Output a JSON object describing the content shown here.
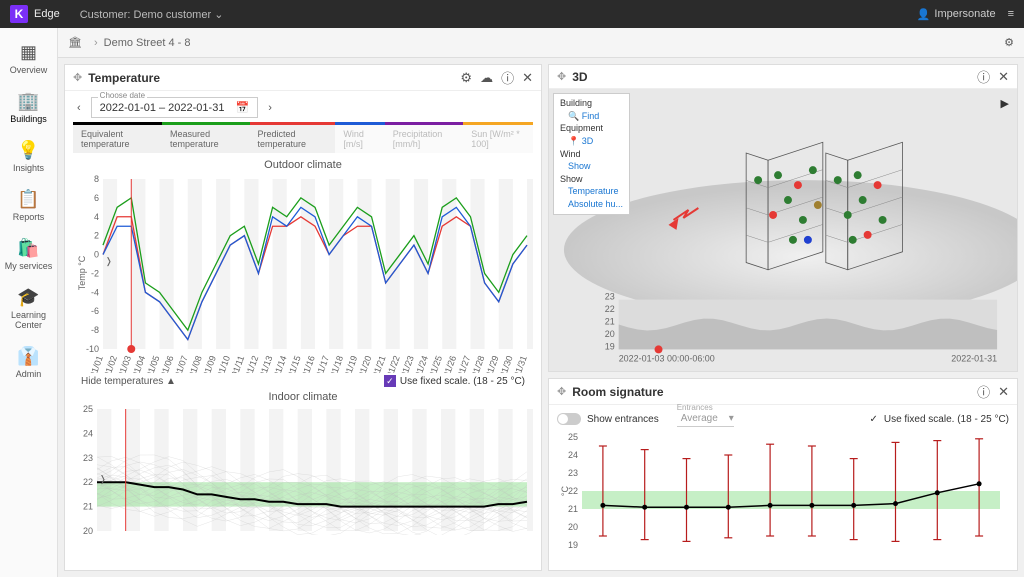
{
  "topbar": {
    "brand": "Edge",
    "customer_label": "Customer: Demo customer",
    "impersonate": "Impersonate"
  },
  "breadcrumb": {
    "location": "Demo Street 4 - 8"
  },
  "sidebar": {
    "items": [
      {
        "label": "Overview"
      },
      {
        "label": "Buildings"
      },
      {
        "label": "Insights"
      },
      {
        "label": "Reports"
      },
      {
        "label": "My services"
      },
      {
        "label": "Learning Center"
      },
      {
        "label": "Admin"
      }
    ]
  },
  "temp_panel": {
    "title": "Temperature",
    "date_label": "Choose date",
    "date_range": "2022-01-01 – 2022-01-31",
    "legend": [
      {
        "label": "Equivalent temperature",
        "color": "#000000"
      },
      {
        "label": "Measured temperature",
        "color": "#1b9e1b"
      },
      {
        "label": "Predicted temperature",
        "color": "#e53935"
      },
      {
        "label": "Wind [m/s]",
        "color": "#1e5bd6",
        "dim": true
      },
      {
        "label": "Precipitation [mm/h]",
        "color": "#7b1fa2",
        "dim": true
      },
      {
        "label": "Sun [W/m² * 100]",
        "color": "#f5a623",
        "dim": true
      }
    ],
    "outdoor_title": "Outdoor climate",
    "indoor_title": "Indoor climate",
    "hide_link": "Hide temperatures",
    "fixed_scale": "Use fixed scale. (18 - 25 °C)",
    "outdoor_chart": {
      "ylabel": "Temp °C",
      "ylim": [
        -10,
        8
      ],
      "ytick_step": 2,
      "x_labels": [
        "01/01",
        "01/02",
        "01/03",
        "01/04",
        "01/05",
        "01/06",
        "01/07",
        "01/08",
        "01/09",
        "01/10",
        "01/11",
        "01/12",
        "01/13",
        "01/14",
        "01/15",
        "01/16",
        "01/17",
        "01/18",
        "01/19",
        "01/20",
        "01/21",
        "01/22",
        "01/23",
        "01/24",
        "01/25",
        "01/26",
        "01/27",
        "01/28",
        "01/29",
        "01/30",
        "01/31"
      ],
      "cursor_index": 2,
      "series": {
        "green": {
          "color": "#1b9e1b",
          "values": [
            1,
            5,
            6,
            -3,
            -4,
            -6,
            -8,
            -4,
            -1,
            2,
            3,
            -1,
            5,
            4,
            6,
            5,
            1,
            3,
            5,
            4,
            -2,
            0,
            2,
            -1,
            5,
            6,
            4,
            -2,
            -4,
            0,
            2
          ]
        },
        "red": {
          "color": "#e53935",
          "values": [
            0,
            4,
            4,
            -4,
            -5,
            -7,
            -9,
            -5,
            -2,
            1,
            2,
            -2,
            3,
            3,
            4,
            3,
            0,
            2,
            3,
            3,
            -3,
            -1,
            1,
            -2,
            3,
            4,
            3,
            -3,
            -5,
            -1,
            1
          ]
        },
        "blue": {
          "color": "#1e5bd6",
          "values": [
            0,
            3,
            3,
            -4,
            -5,
            -7,
            -9,
            -5,
            -2,
            1,
            2,
            -2,
            4,
            3,
            5,
            4,
            0,
            2,
            4,
            3,
            -3,
            -1,
            1,
            -2,
            4,
            5,
            3,
            -3,
            -5,
            -1,
            1
          ]
        }
      }
    },
    "indoor_chart": {
      "ylabel": "°C",
      "ylim": [
        20,
        25
      ],
      "ytick_step": 1,
      "green_band": [
        21,
        22
      ],
      "main_line": {
        "color": "#000",
        "values": [
          22,
          22,
          22,
          21.9,
          21.8,
          21.8,
          21.7,
          21.5,
          21.5,
          21.4,
          21.3,
          21.3,
          21.2,
          21.2,
          21.1,
          21.1,
          21.1,
          21.0,
          21.0,
          21.0,
          21.0,
          21.0,
          21.0,
          21.0,
          21.0,
          21.0,
          21.0,
          21.0,
          21.1,
          21.1,
          21.2
        ]
      }
    }
  },
  "threed_panel": {
    "title": "3D",
    "controls": {
      "building": "Building",
      "find": "Find",
      "equipment": "Equipment",
      "threed": "3D",
      "wind": "Wind",
      "show": "Show",
      "show2": "Show",
      "temperature": "Temperature",
      "humidity": "Absolute hu..."
    },
    "timeline": {
      "start": "2022-01-03 00:00-06:00",
      "end": "2022-01-31",
      "ylabels": [
        "19",
        "20",
        "21",
        "22",
        "23"
      ]
    }
  },
  "room_panel": {
    "title": "Room signature",
    "show_entrances": "Show entrances",
    "entrances_label": "Entrances",
    "entrances_value": "Average",
    "fixed_scale": "Use fixed scale. (18 - 25 °C)",
    "chart": {
      "ylabel": "°C",
      "ylim": [
        19,
        25
      ],
      "ytick_step": 1,
      "green_band": [
        21,
        22
      ],
      "points": [
        {
          "y": 21.2,
          "lo": 19.5,
          "hi": 24.5
        },
        {
          "y": 21.1,
          "lo": 19.3,
          "hi": 24.3
        },
        {
          "y": 21.1,
          "lo": 19.2,
          "hi": 23.8
        },
        {
          "y": 21.1,
          "lo": 19.4,
          "hi": 24.0
        },
        {
          "y": 21.2,
          "lo": 19.5,
          "hi": 24.6
        },
        {
          "y": 21.2,
          "lo": 19.5,
          "hi": 24.5
        },
        {
          "y": 21.2,
          "lo": 19.3,
          "hi": 23.8
        },
        {
          "y": 21.3,
          "lo": 19.2,
          "hi": 24.7
        },
        {
          "y": 21.9,
          "lo": 19.3,
          "hi": 24.8
        },
        {
          "y": 22.4,
          "lo": 19.5,
          "hi": 24.9
        }
      ],
      "bar_color": "#b71c1c",
      "point_color": "#000"
    }
  }
}
